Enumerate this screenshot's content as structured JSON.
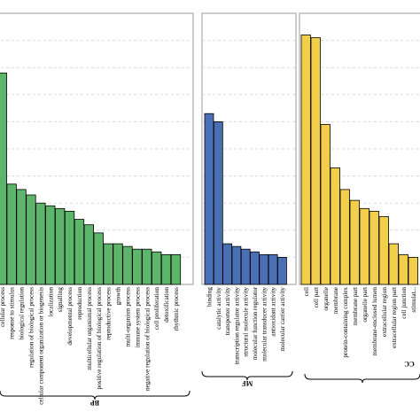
{
  "chart_data": [
    {
      "type": "bar",
      "group": "BP",
      "color": "#5db56b",
      "ylim": [
        0,
        100
      ],
      "grid": true,
      "categories": [
        "cellular process",
        "response to stimulus",
        "biological regulation",
        "regulation of biological process",
        "cellular component organization or biogenesis",
        "localization",
        "signalling",
        "developmental process",
        "reproduction",
        "multicellular organismal process",
        "positive regulation of biological process",
        "reproductive process",
        "growth",
        "multi-organism process",
        "immune system process",
        "negative regulation of biological process",
        "cell proliferation",
        "detoxification",
        "rhythmic process"
      ],
      "values": [
        78,
        37,
        35,
        33,
        30,
        29,
        28,
        27,
        24,
        22,
        19,
        15,
        15,
        14,
        13,
        13,
        12,
        11,
        11
      ]
    },
    {
      "type": "bar",
      "group": "MF",
      "color": "#4a6fb4",
      "ylim": [
        0,
        100
      ],
      "grid": true,
      "categories": [
        "binding",
        "catalytic activity",
        "transporter activity",
        "transcription regulator activity",
        "structural molecule activity",
        "molecular function regulator",
        "molecular transducer activity",
        "antioxidant activity",
        "molecular carrier activity"
      ],
      "values": [
        63,
        60,
        15,
        14,
        13,
        12,
        11,
        11,
        10
      ]
    },
    {
      "type": "bar",
      "group": "CC",
      "color": "#f2cf4a",
      "ylim": [
        0,
        100
      ],
      "grid": true,
      "categories": [
        "cell",
        "cell part",
        "organelle",
        "membrane",
        "protein-containing complex",
        "membrane part",
        "organelle part",
        "membrane-enclosed lumen",
        "extracellular region",
        "extracellular region part",
        "cell junction",
        "stimulat..."
      ],
      "values": [
        92,
        91,
        59,
        43,
        35,
        31,
        28,
        27,
        25,
        15,
        11,
        10
      ]
    }
  ]
}
